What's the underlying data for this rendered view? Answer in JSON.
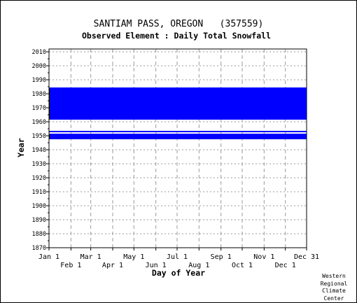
{
  "chart_data": {
    "type": "heatmap",
    "title": "SANTIAM PASS, OREGON   (357559)",
    "subtitle": "Observed Element : Daily Total Snowfall",
    "xlabel": "Day of Year",
    "ylabel": "Year",
    "x_range_day_of_year": [
      1,
      365
    ],
    "ylim": [
      1870,
      2012
    ],
    "y_ticks": [
      1870,
      1880,
      1890,
      1900,
      1910,
      1920,
      1930,
      1940,
      1950,
      1960,
      1970,
      1980,
      1990,
      2000,
      2010
    ],
    "x_ticks_upper": [
      {
        "label": "Jan 1",
        "day": 1
      },
      {
        "label": "Mar 1",
        "day": 60
      },
      {
        "label": "May 1",
        "day": 121
      },
      {
        "label": "Jul 1",
        "day": 182
      },
      {
        "label": "Sep 1",
        "day": 244
      },
      {
        "label": "Nov 1",
        "day": 305
      },
      {
        "label": "Dec 31",
        "day": 365
      }
    ],
    "x_ticks_lower": [
      {
        "label": "Feb 1",
        "day": 32
      },
      {
        "label": "Apr 1",
        "day": 91
      },
      {
        "label": "Jun 1",
        "day": 152
      },
      {
        "label": "Aug 1",
        "day": 213
      },
      {
        "label": "Oct 1",
        "day": 274
      },
      {
        "label": "Dec 1",
        "day": 335
      }
    ],
    "grid": true,
    "data_color": "#0000ff",
    "observed_periods": [
      {
        "year_start": 1962,
        "year_end": 1984,
        "day_start": 1,
        "day_end": 365
      },
      {
        "year_start": 1953,
        "year_end": 1953,
        "day_start": 1,
        "day_end": 365
      },
      {
        "year_start": 1948,
        "year_end": 1951,
        "day_start": 1,
        "day_end": 365
      }
    ]
  },
  "credit": [
    "Western",
    "Regional",
    "Climate",
    "Center"
  ]
}
